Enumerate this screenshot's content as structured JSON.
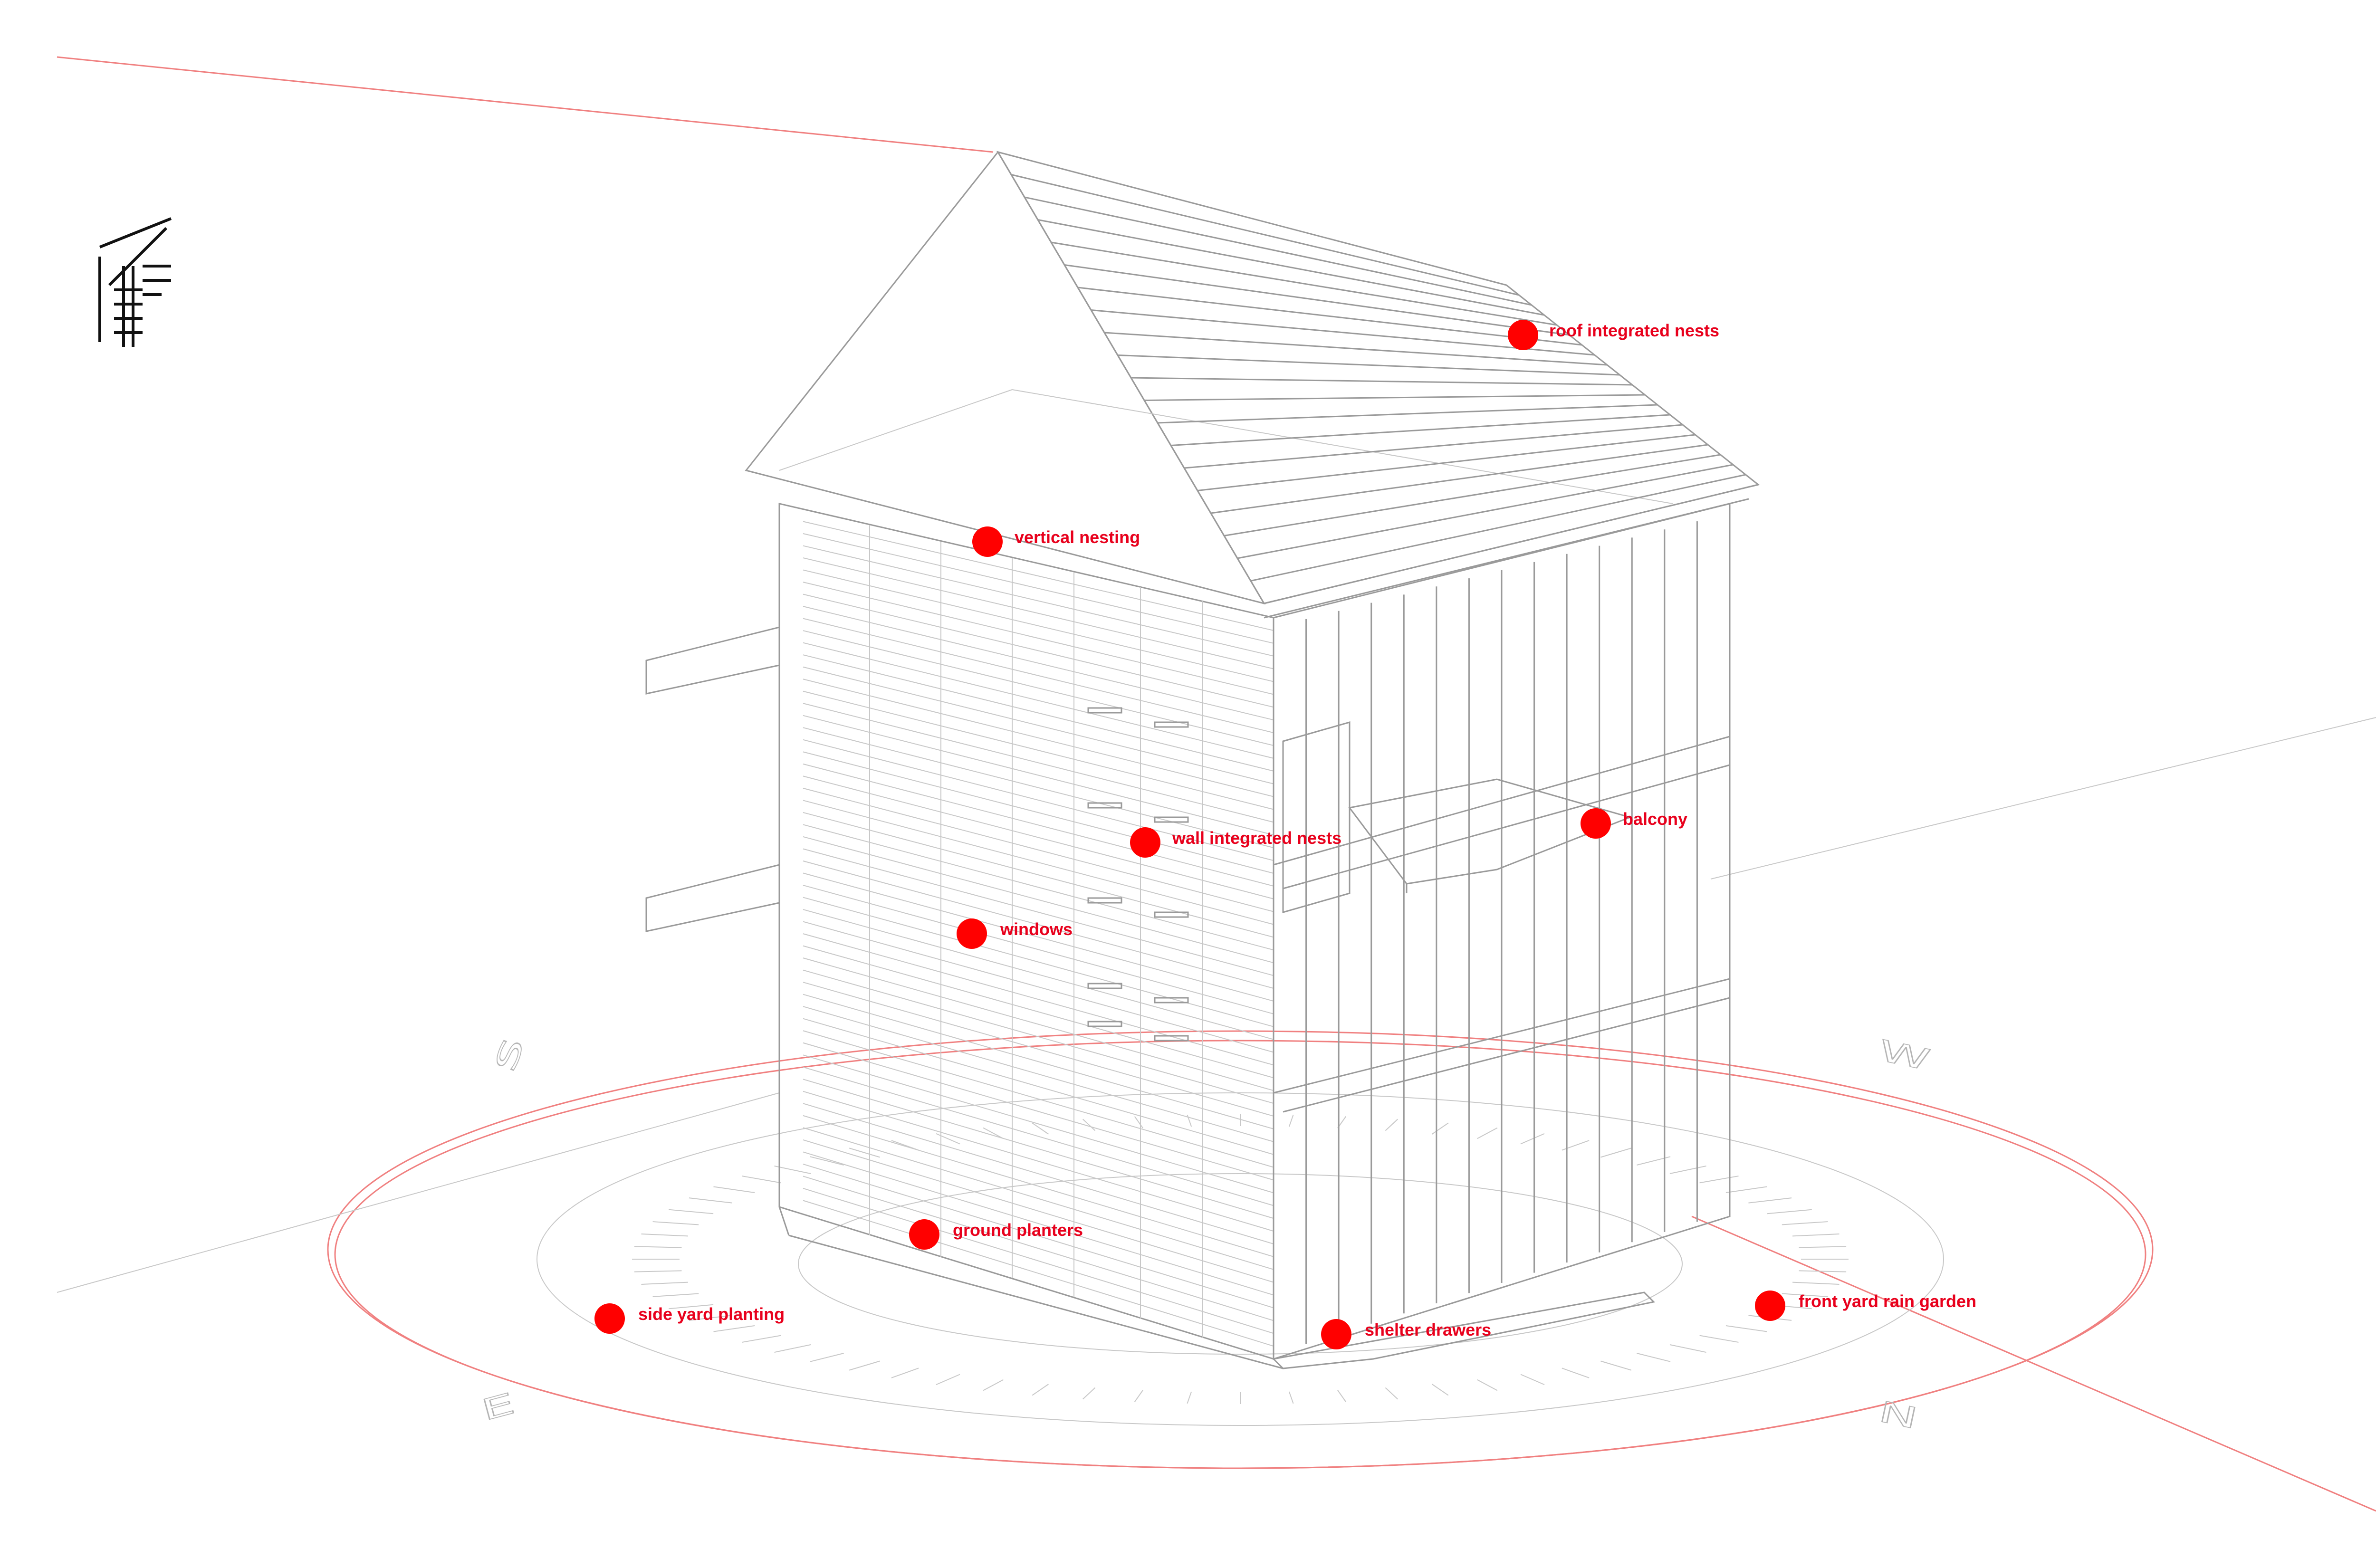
{
  "callouts": [
    {
      "key": "roof_integrated_nests",
      "label": "roof integrated nests"
    },
    {
      "key": "vertical_nesting",
      "label": "vertical nesting"
    },
    {
      "key": "balcony",
      "label": "balcony"
    },
    {
      "key": "wall_integrated_nests",
      "label": "wall integrated nests"
    },
    {
      "key": "windows",
      "label": "windows"
    },
    {
      "key": "ground_planters",
      "label": "ground planters"
    },
    {
      "key": "side_yard_planting",
      "label": "side yard planting"
    },
    {
      "key": "shelter_drawers",
      "label": "shelter drawers"
    },
    {
      "key": "front_yard_rain_garden",
      "label": "front yard rain garden"
    }
  ],
  "compass": {
    "n": "N",
    "s": "S",
    "e": "E",
    "w": "W"
  },
  "colors": {
    "callout_dot": "#ff0000",
    "callout_text": "#e8001c",
    "guide_line": "#f08080",
    "drawing_line": "#9a9a9a"
  }
}
